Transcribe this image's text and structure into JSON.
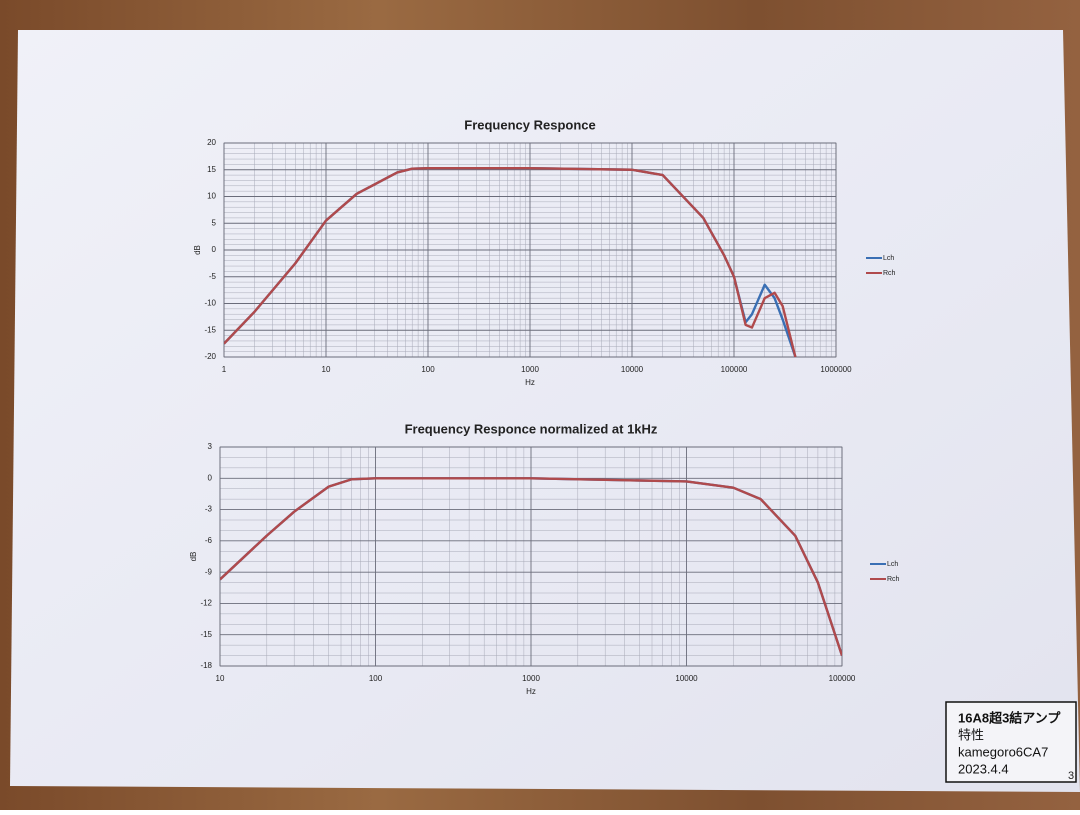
{
  "chart_data": [
    {
      "type": "line",
      "title": "Frequency Responce",
      "x_label": "Hz",
      "y_label": "dB",
      "x": [
        1,
        2,
        5,
        10,
        20,
        50,
        70,
        100,
        1000,
        10000,
        20000,
        50000,
        80000,
        100000,
        130000,
        150000,
        200000,
        250000,
        300000,
        400000
      ],
      "series": [
        {
          "name": "Lch",
          "color": "#3a6fb4",
          "values": [
            -17.5,
            -11.5,
            -2.5,
            5.5,
            10.5,
            14.5,
            15.2,
            15.3,
            15.3,
            15,
            14,
            6,
            -1,
            -5,
            -13.5,
            -12,
            -6.5,
            -9,
            -13,
            -20
          ]
        },
        {
          "name": "Rch",
          "color": "#b04a4c",
          "values": [
            -17.5,
            -11.5,
            -2.5,
            5.5,
            10.5,
            14.5,
            15.2,
            15.3,
            15.3,
            15,
            14,
            6,
            -1,
            -5,
            -14,
            -14.5,
            -9,
            -8,
            -10.5,
            -20
          ]
        }
      ],
      "xlog": true,
      "xlim": [
        1,
        1000000
      ],
      "xticks": [
        1,
        10,
        100,
        1000,
        10000,
        100000,
        1000000
      ],
      "ylim": [
        -20,
        20
      ],
      "yticks": [
        -20,
        -15,
        -10,
        -5,
        0,
        5,
        10,
        15,
        20
      ],
      "grid": true,
      "legend": "right"
    },
    {
      "type": "line",
      "title": "Frequency Responce normalized at 1kHz",
      "x_label": "Hz",
      "y_label": "dB",
      "x": [
        10,
        20,
        30,
        50,
        70,
        100,
        1000,
        10000,
        20000,
        30000,
        50000,
        70000,
        100000
      ],
      "series": [
        {
          "name": "Lch",
          "color": "#3a6fb4",
          "values": [
            -9.7,
            -5.5,
            -3.2,
            -0.8,
            -0.1,
            0,
            0,
            -0.3,
            -0.9,
            -2,
            -5.5,
            -10,
            -17
          ]
        },
        {
          "name": "Rch",
          "color": "#b04a4c",
          "values": [
            -9.7,
            -5.5,
            -3.2,
            -0.8,
            -0.1,
            0,
            0,
            -0.3,
            -0.9,
            -2,
            -5.5,
            -10,
            -17
          ]
        }
      ],
      "xlog": true,
      "xlim": [
        10,
        100000
      ],
      "xticks": [
        10,
        100,
        1000,
        10000,
        100000
      ],
      "ylim": [
        -18,
        3
      ],
      "yticks": [
        -18,
        -15,
        -12,
        -9,
        -6,
        -3,
        0,
        3
      ],
      "grid": true,
      "legend": "right"
    }
  ],
  "note": {
    "lines": [
      "16A8超3結アンプ",
      "特性",
      "kamegoro6CA7",
      "2023.4.4"
    ],
    "page_number": "3"
  }
}
